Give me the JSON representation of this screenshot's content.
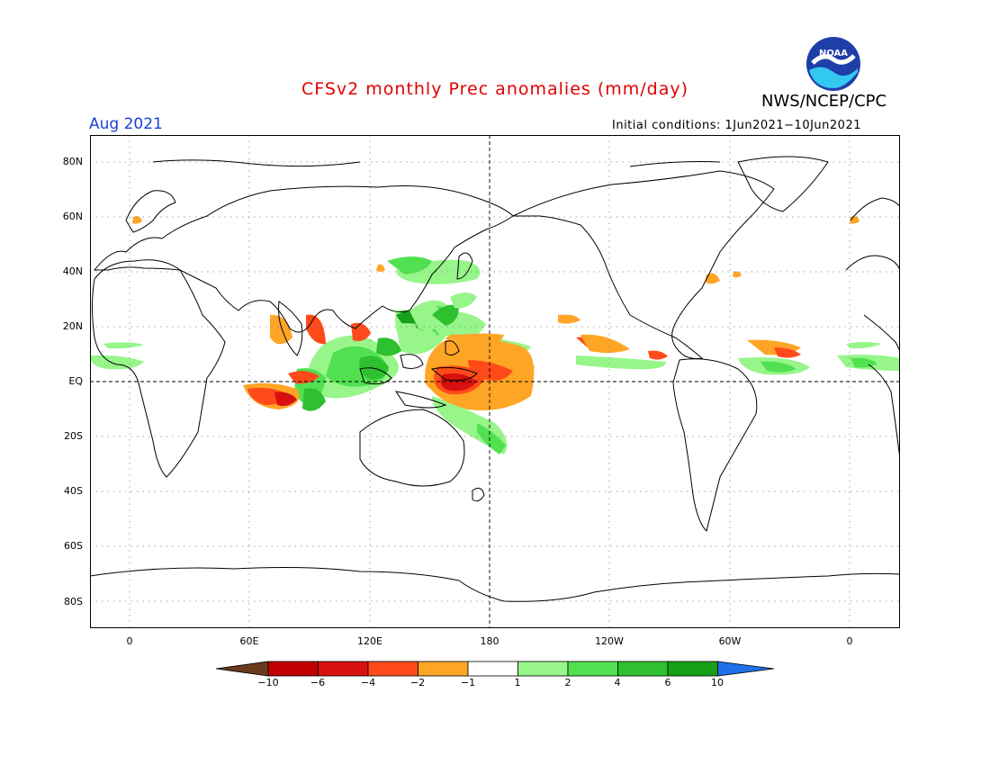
{
  "header": {
    "title": "CFSv2 monthly Prec anomalies (mm/day)",
    "organization": "NWS/NCEP/CPC",
    "logo_text": "NOAA",
    "month": "Aug 2021",
    "initial_conditions": "Initial conditions: 1Jun2021−10Jun2021"
  },
  "axes": {
    "lat_labels": [
      "80N",
      "60N",
      "40N",
      "20N",
      "EQ",
      "20S",
      "40S",
      "60S",
      "80S"
    ],
    "lon_labels": [
      "0",
      "60E",
      "120E",
      "180",
      "120W",
      "60W",
      "0"
    ]
  },
  "colorbar": {
    "labels": [
      "−10",
      "−6",
      "−4",
      "−2",
      "−1",
      "1",
      "2",
      "4",
      "6",
      "10"
    ],
    "colors": [
      "#6b3a1e",
      "#c00000",
      "#d81010",
      "#ff4a1a",
      "#ffa526",
      "#ffffff",
      "#97f58a",
      "#50e050",
      "#2ec02e",
      "#179f17",
      "#1f6fe8"
    ]
  },
  "colors": {
    "title": "#e00000",
    "month": "#1a3fd9",
    "land_outline": "#000000",
    "grid": "#888888"
  }
}
